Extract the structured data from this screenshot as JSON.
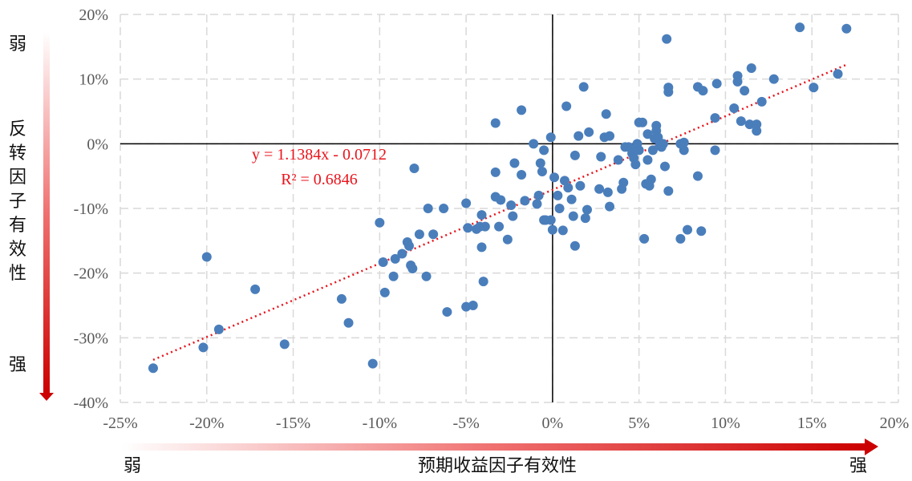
{
  "chart_data": {
    "type": "scatter",
    "xlim": [
      -0.25,
      0.2
    ],
    "ylim": [
      -0.4,
      0.2
    ],
    "x_ticks": [
      "-25%",
      "-20%",
      "-15%",
      "-10%",
      "-5%",
      "0%",
      "5%",
      "10%",
      "15%",
      "20%"
    ],
    "y_ticks": [
      "-40%",
      "-30%",
      "-20%",
      "-10%",
      "0%",
      "10%",
      "20%"
    ],
    "grid": true,
    "trendline": {
      "slope": 1.1384,
      "intercept": -0.0712,
      "equation_label": "y = 1.1384x - 0.0712",
      "r2_label": "R² = 0.6846",
      "color": "#e8131b",
      "style": "dotted"
    },
    "x_axis_title": "预期收益因子有效性",
    "x_weak_label": "弱",
    "x_strong_label": "强",
    "y_axis_title": "反转因子有效性",
    "y_weak_label": "弱",
    "y_strong_label": "强",
    "point_color": "#4a7ebb",
    "points": [
      [
        -0.231,
        -0.347
      ],
      [
        -0.202,
        -0.315
      ],
      [
        -0.2,
        -0.175
      ],
      [
        -0.193,
        -0.287
      ],
      [
        -0.172,
        -0.225
      ],
      [
        -0.155,
        -0.31
      ],
      [
        -0.122,
        -0.24
      ],
      [
        -0.118,
        -0.277
      ],
      [
        -0.104,
        -0.34
      ],
      [
        -0.1,
        -0.122
      ],
      [
        -0.098,
        -0.183
      ],
      [
        -0.097,
        -0.23
      ],
      [
        -0.092,
        -0.205
      ],
      [
        -0.091,
        -0.178
      ],
      [
        -0.087,
        -0.17
      ],
      [
        -0.084,
        -0.152
      ],
      [
        -0.083,
        -0.158
      ],
      [
        -0.082,
        -0.188
      ],
      [
        -0.081,
        -0.193
      ],
      [
        -0.08,
        -0.038
      ],
      [
        -0.077,
        -0.14
      ],
      [
        -0.073,
        -0.205
      ],
      [
        -0.072,
        -0.1
      ],
      [
        -0.069,
        -0.14
      ],
      [
        -0.063,
        -0.1
      ],
      [
        -0.061,
        -0.26
      ],
      [
        -0.05,
        -0.252
      ],
      [
        -0.05,
        -0.092
      ],
      [
        -0.049,
        -0.13
      ],
      [
        -0.046,
        -0.25
      ],
      [
        -0.044,
        -0.132
      ],
      [
        -0.042,
        -0.128
      ],
      [
        -0.041,
        -0.11
      ],
      [
        -0.041,
        -0.16
      ],
      [
        -0.04,
        -0.213
      ],
      [
        -0.039,
        -0.128
      ],
      [
        -0.033,
        -0.082
      ],
      [
        -0.033,
        -0.044
      ],
      [
        -0.033,
        0.032
      ],
      [
        -0.031,
        -0.128
      ],
      [
        -0.03,
        -0.087
      ],
      [
        -0.026,
        -0.148
      ],
      [
        -0.024,
        -0.095
      ],
      [
        -0.023,
        -0.112
      ],
      [
        -0.022,
        -0.03
      ],
      [
        -0.018,
        0.052
      ],
      [
        -0.018,
        -0.048
      ],
      [
        -0.016,
        -0.088
      ],
      [
        -0.011,
        0.0
      ],
      [
        -0.009,
        -0.093
      ],
      [
        -0.008,
        -0.08
      ],
      [
        -0.007,
        -0.03
      ],
      [
        -0.006,
        -0.043
      ],
      [
        -0.005,
        -0.01
      ],
      [
        -0.005,
        -0.118
      ],
      [
        -0.004,
        -0.118
      ],
      [
        -0.001,
        0.01
      ],
      [
        -0.001,
        -0.118
      ],
      [
        0.0,
        -0.133
      ],
      [
        0.001,
        -0.052
      ],
      [
        0.003,
        -0.08
      ],
      [
        0.004,
        -0.1
      ],
      [
        0.006,
        -0.134
      ],
      [
        0.007,
        -0.057
      ],
      [
        0.008,
        0.058
      ],
      [
        0.009,
        -0.068
      ],
      [
        0.011,
        -0.086
      ],
      [
        0.012,
        -0.112
      ],
      [
        0.013,
        -0.158
      ],
      [
        0.013,
        -0.018
      ],
      [
        0.015,
        0.012
      ],
      [
        0.016,
        -0.065
      ],
      [
        0.018,
        0.088
      ],
      [
        0.019,
        -0.115
      ],
      [
        0.02,
        -0.102
      ],
      [
        0.021,
        0.018
      ],
      [
        0.027,
        -0.07
      ],
      [
        0.028,
        -0.02
      ],
      [
        0.03,
        0.01
      ],
      [
        0.031,
        0.046
      ],
      [
        0.032,
        -0.075
      ],
      [
        0.033,
        0.012
      ],
      [
        0.033,
        -0.097
      ],
      [
        0.038,
        -0.025
      ],
      [
        0.04,
        -0.07
      ],
      [
        0.041,
        -0.06
      ],
      [
        0.042,
        -0.005
      ],
      [
        0.044,
        -0.005
      ],
      [
        0.046,
        -0.015
      ],
      [
        0.047,
        -0.022
      ],
      [
        0.048,
        -0.032
      ],
      [
        0.048,
        -0.007
      ],
      [
        0.049,
        0.0
      ],
      [
        0.05,
        -0.01
      ],
      [
        0.05,
        0.033
      ],
      [
        0.052,
        0.033
      ],
      [
        0.053,
        -0.147
      ],
      [
        0.054,
        -0.062
      ],
      [
        0.055,
        -0.025
      ],
      [
        0.055,
        0.015
      ],
      [
        0.056,
        -0.065
      ],
      [
        0.057,
        -0.055
      ],
      [
        0.058,
        -0.01
      ],
      [
        0.059,
        0.008
      ],
      [
        0.06,
        0.02
      ],
      [
        0.06,
        0.028
      ],
      [
        0.061,
        0.01
      ],
      [
        0.062,
        -0.003
      ],
      [
        0.063,
        -0.005
      ],
      [
        0.064,
        0.0
      ],
      [
        0.065,
        -0.035
      ],
      [
        0.066,
        0.162
      ],
      [
        0.067,
        -0.073
      ],
      [
        0.067,
        0.08
      ],
      [
        0.067,
        0.087
      ],
      [
        0.074,
        -0.147
      ],
      [
        0.074,
        0.0
      ],
      [
        0.076,
        -0.01
      ],
      [
        0.076,
        0.002
      ],
      [
        0.078,
        -0.133
      ],
      [
        0.084,
        -0.05
      ],
      [
        0.084,
        0.088
      ],
      [
        0.086,
        -0.135
      ],
      [
        0.087,
        0.082
      ],
      [
        0.094,
        0.04
      ],
      [
        0.094,
        -0.01
      ],
      [
        0.095,
        0.093
      ],
      [
        0.105,
        0.055
      ],
      [
        0.107,
        0.096
      ],
      [
        0.107,
        0.105
      ],
      [
        0.109,
        0.035
      ],
      [
        0.111,
        0.082
      ],
      [
        0.114,
        0.03
      ],
      [
        0.115,
        0.117
      ],
      [
        0.118,
        0.02
      ],
      [
        0.118,
        0.03
      ],
      [
        0.121,
        0.065
      ],
      [
        0.128,
        0.1
      ],
      [
        0.143,
        0.18
      ],
      [
        0.151,
        0.087
      ],
      [
        0.165,
        0.108
      ],
      [
        0.17,
        0.178
      ]
    ]
  }
}
